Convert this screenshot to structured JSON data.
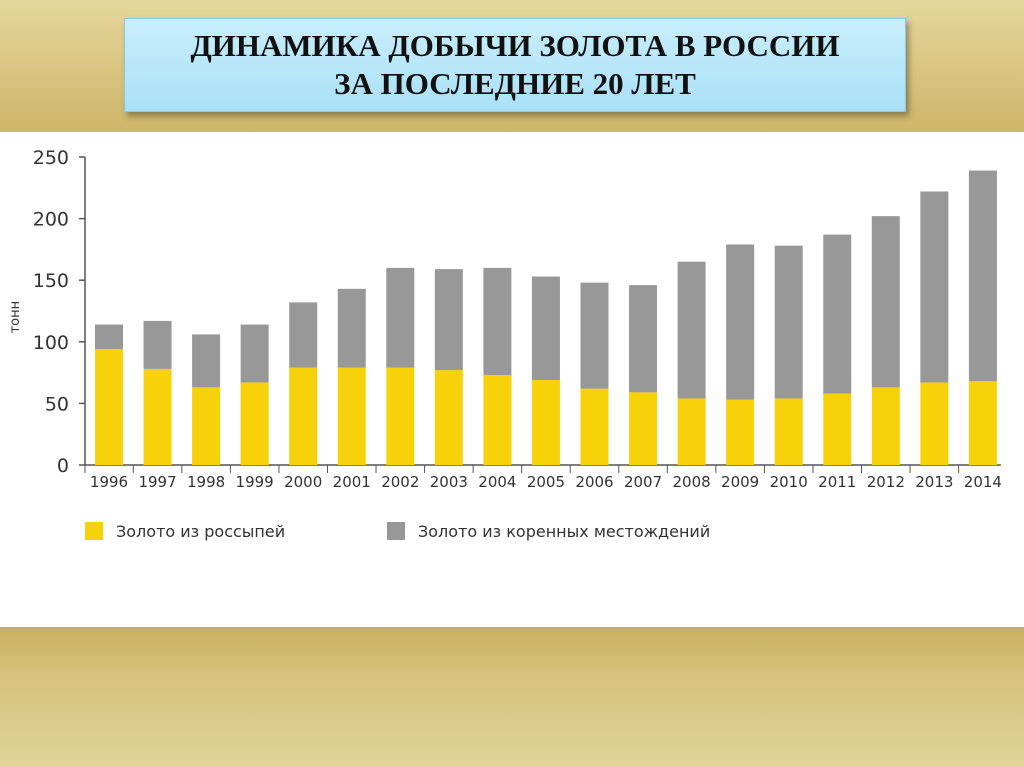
{
  "slide": {
    "title_line1": "ДИНАМИКА ДОБЫЧИ ЗОЛОТА В РОССИИ",
    "title_line2": "ЗА ПОСЛЕДНИЕ 20 ЛЕТ"
  },
  "colors": {
    "placer": "#f7d10a",
    "bedrock": "#989898",
    "title_bg": "#b3e4f7",
    "band": "#d9c47f"
  },
  "chart_data": {
    "type": "bar",
    "stacked": true,
    "ylabel": "тонн",
    "ylim": [
      0,
      250
    ],
    "yticks": [
      0,
      50,
      100,
      150,
      200,
      250
    ],
    "categories": [
      "1996",
      "1997",
      "1998",
      "1999",
      "2000",
      "2001",
      "2002",
      "2003",
      "2004",
      "2005",
      "2006",
      "2007",
      "2008",
      "2009",
      "2010",
      "2011",
      "2012",
      "2013",
      "2014"
    ],
    "series": [
      {
        "name": "Золото из россыпей",
        "values": [
          94,
          78,
          63,
          67,
          79,
          79,
          79,
          77,
          73,
          69,
          62,
          59,
          54,
          53,
          54,
          58,
          63,
          67,
          68
        ]
      },
      {
        "name": "Золото из коренных местождений",
        "values": [
          20,
          39,
          43,
          47,
          53,
          64,
          81,
          82,
          87,
          84,
          86,
          87,
          111,
          126,
          124,
          129,
          139,
          155,
          171
        ]
      }
    ],
    "legend_position": "bottom-left",
    "grid": false
  }
}
